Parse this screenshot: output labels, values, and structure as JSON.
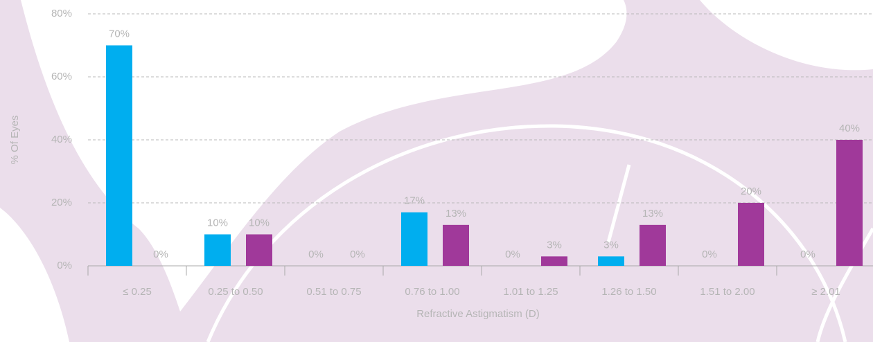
{
  "chart_data": {
    "type": "bar",
    "x_label": "Refractive Astigmatism (D)",
    "y_label": "% Of Eyes",
    "categories": [
      "≤ 0.25",
      "0.25 to 0.50",
      "0.51 to 0.75",
      "0.76 to 1.00",
      "1.01 to 1.25",
      "1.26 to 1.50",
      "1.51 to 2.00",
      "≥ 2.01"
    ],
    "series": [
      {
        "color": "#00aeef",
        "values": [
          70,
          10,
          0,
          17,
          0,
          3,
          0,
          0
        ],
        "value_labels": [
          "70%",
          "10%",
          "0%",
          "17%",
          "0%",
          "3%",
          "0%",
          "0%"
        ]
      },
      {
        "color": "#a0399a",
        "values": [
          0,
          10,
          0,
          13,
          3,
          13,
          20,
          40
        ],
        "value_labels": [
          "0%",
          "10%",
          "0%",
          "13%",
          "3%",
          "13%",
          "20%",
          "40%"
        ]
      }
    ],
    "ylim": [
      0,
      80
    ],
    "yticks": [
      {
        "value": 0,
        "label": "0%"
      },
      {
        "value": 20,
        "label": "20%"
      },
      {
        "value": 40,
        "label": "40%"
      },
      {
        "value": 60,
        "label": "60%"
      },
      {
        "value": 80,
        "label": "80%"
      }
    ],
    "grid": true
  }
}
